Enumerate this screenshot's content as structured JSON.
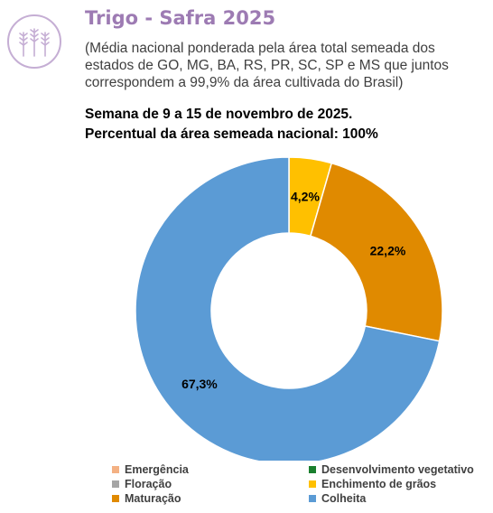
{
  "header": {
    "title": "Trigo - Safra 2025",
    "subtitle": "(Média nacional ponderada pela área total semeada dos estados de GO, MG, BA, RS, PR, SC, SP e MS que juntos correspondem a 99,9% da área cultivada do Brasil)",
    "week": "Semana de 9 a 15 de novembro de 2025.",
    "percent_planted": "Percentual da área semeada nacional: 100%",
    "logo_icon": "wheat-icon"
  },
  "chart_data": {
    "type": "pie",
    "donut": true,
    "categories": [
      "Emergência",
      "Floração",
      "Maturação",
      "Desenvolvimento vegetativo",
      "Enchimento de grãos",
      "Colheita"
    ],
    "values": [
      0,
      0,
      22.2,
      0,
      4.2,
      67.3
    ],
    "colors": [
      "#f4b183",
      "#a5a5a5",
      "#e08a00",
      "#1a7f2e",
      "#ffc000",
      "#5b9bd5"
    ],
    "slice_labels": [
      "",
      "",
      "22,2%",
      "",
      "4,2%",
      "67,3%"
    ],
    "slice_order": [
      "Enchimento de grãos",
      "Maturação",
      "Colheita"
    ],
    "legend_position": "bottom"
  }
}
